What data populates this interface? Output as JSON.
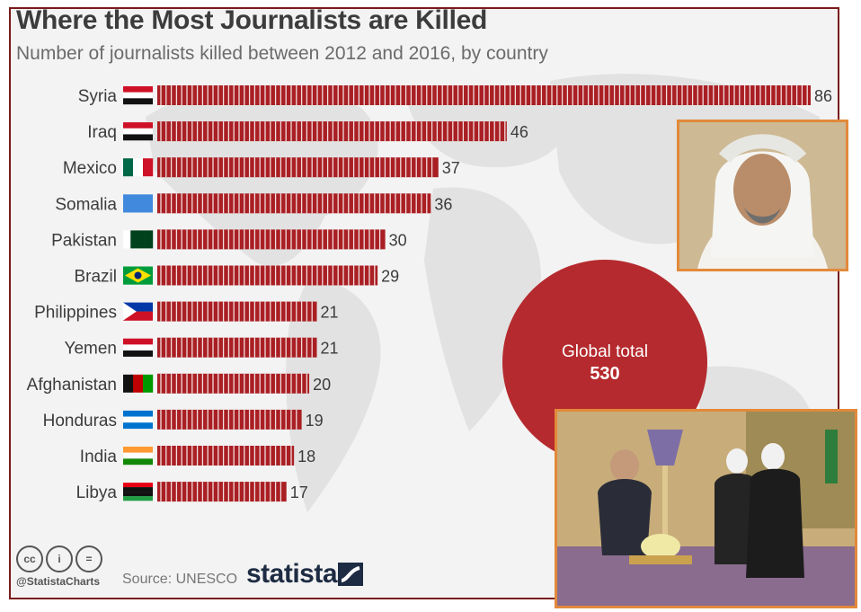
{
  "title": "Where the Most Journalists are Killed",
  "subtitle": "Number of journalists killed between 2012 and 2016, by country",
  "chart_data": {
    "type": "bar",
    "orientation": "horizontal",
    "title": "Where the Most Journalists are Killed",
    "subtitle": "Number of journalists killed between 2012 and 2016, by country",
    "categories": [
      "Syria",
      "Iraq",
      "Mexico",
      "Somalia",
      "Pakistan",
      "Brazil",
      "Philippines",
      "Yemen",
      "Afghanistan",
      "Honduras",
      "India",
      "Libya"
    ],
    "values": [
      86,
      46,
      37,
      36,
      30,
      29,
      21,
      21,
      20,
      19,
      18,
      17
    ],
    "xlim": [
      0,
      86
    ],
    "grid": false,
    "legend": "none",
    "bar_color": "#a91f23",
    "annotation": {
      "label": "Global total",
      "value": "530"
    }
  },
  "flags": [
    "syria-flag-icon",
    "iraq-flag-icon",
    "mexico-flag-icon",
    "somalia-flag-icon",
    "pakistan-flag-icon",
    "brazil-flag-icon",
    "philippines-flag-icon",
    "yemen-flag-icon",
    "afghanistan-flag-icon",
    "honduras-flag-icon",
    "india-flag-icon",
    "libya-flag-icon"
  ],
  "footer": {
    "license_icons": [
      "cc",
      "i",
      "="
    ],
    "handle": "@StatistaCharts",
    "source": "Source: UNESCO",
    "brand": "statista"
  },
  "colors": {
    "accent": "#a91f23",
    "bubble": "#b52a2e",
    "frame": "#7a1a1a",
    "photo_border": "#e2893a"
  }
}
